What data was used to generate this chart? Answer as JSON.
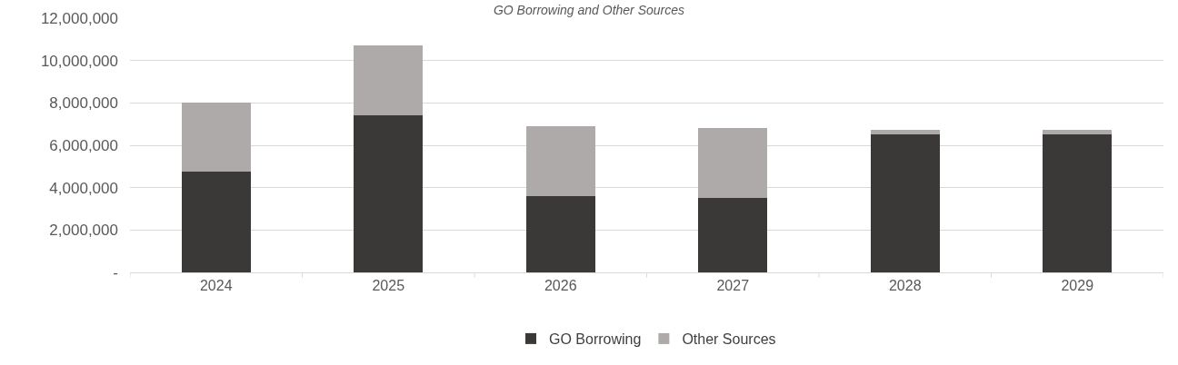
{
  "chart_data": {
    "type": "bar",
    "title": "GO Borrowing and Other Sources",
    "stacked": true,
    "categories": [
      "2024",
      "2025",
      "2026",
      "2027",
      "2028",
      "2029"
    ],
    "series": [
      {
        "name": "GO Borrowing",
        "color": "#3a3937",
        "values": [
          4740000,
          7430000,
          3610000,
          3530000,
          6520000,
          6520000
        ]
      },
      {
        "name": "Other Sources",
        "color": "#aeaaa9",
        "values": [
          3260000,
          3270000,
          3310000,
          3280000,
          210000,
          210000
        ]
      }
    ],
    "ylim": [
      0,
      12000000
    ],
    "yticks": [
      {
        "value": 0,
        "label": "-"
      },
      {
        "value": 2000000,
        "label": "2,000,000"
      },
      {
        "value": 4000000,
        "label": "4,000,000"
      },
      {
        "value": 6000000,
        "label": "6,000,000"
      },
      {
        "value": 8000000,
        "label": "8,000,000"
      },
      {
        "value": 10000000,
        "label": "10,000,000"
      },
      {
        "value": 12000000,
        "label": "12,000,000"
      }
    ],
    "grid": "y",
    "legend": "bottom"
  }
}
